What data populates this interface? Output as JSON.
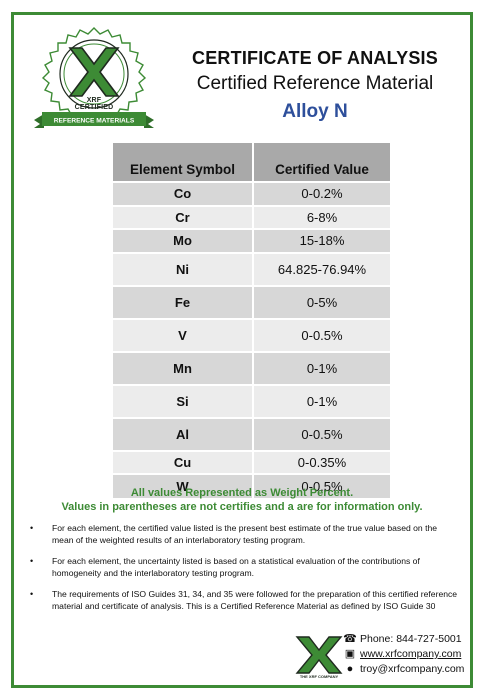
{
  "logo": {
    "badge_text": "XRF CERTIFIED",
    "ribbon_text": "REFERENCE MATERIALS",
    "footer_caption": "THE XRF COMPANY",
    "green": "#3d8b35",
    "dark": "#1f2a1f"
  },
  "header": {
    "title": "CERTIFICATE OF ANALYSIS",
    "subtitle": "Certified Reference Material",
    "alloy": "Alloy N"
  },
  "table": {
    "columns": [
      "Element Symbol",
      "Certified Value"
    ],
    "rows": [
      {
        "symbol": "Co",
        "value": "0-0.2%"
      },
      {
        "symbol": "Cr",
        "value": "6-8%"
      },
      {
        "symbol": "Mo",
        "value": "15-18%"
      },
      {
        "symbol": "Ni",
        "value": "64.825-76.94%"
      },
      {
        "symbol": "Fe",
        "value": "0-5%"
      },
      {
        "symbol": "V",
        "value": "0-0.5%"
      },
      {
        "symbol": "Mn",
        "value": "0-1%"
      },
      {
        "symbol": "Si",
        "value": "0-1%"
      },
      {
        "symbol": "Al",
        "value": "0-0.5%"
      },
      {
        "symbol": "Cu",
        "value": "0-0.35%"
      },
      {
        "symbol": "W",
        "value": "0-0.5%"
      }
    ]
  },
  "note": {
    "line1": "All values Represented as Weight Percent.",
    "line2": "Values in parentheses are not certifies and a are for information only."
  },
  "bullets": [
    "For each element, the certified value listed is the present best estimate of the true value based on the mean of the weighted results of an interlaboratory testing program.",
    "For each element, the uncertainty listed is based on a statistical evaluation of the contributions of homogeneity and the interlaboratory testing program.",
    "The requirements of ISO Guides 31, 34, and 35 were followed for the preparation of this certified reference material and certificate of analysis. This is a Certified Reference Material as defined by ISO Guide 30"
  ],
  "contact": {
    "phone": "Phone: 844-727-5001",
    "website": "www.xrfcompany.com",
    "email": "troy@xrfcompany.com"
  }
}
